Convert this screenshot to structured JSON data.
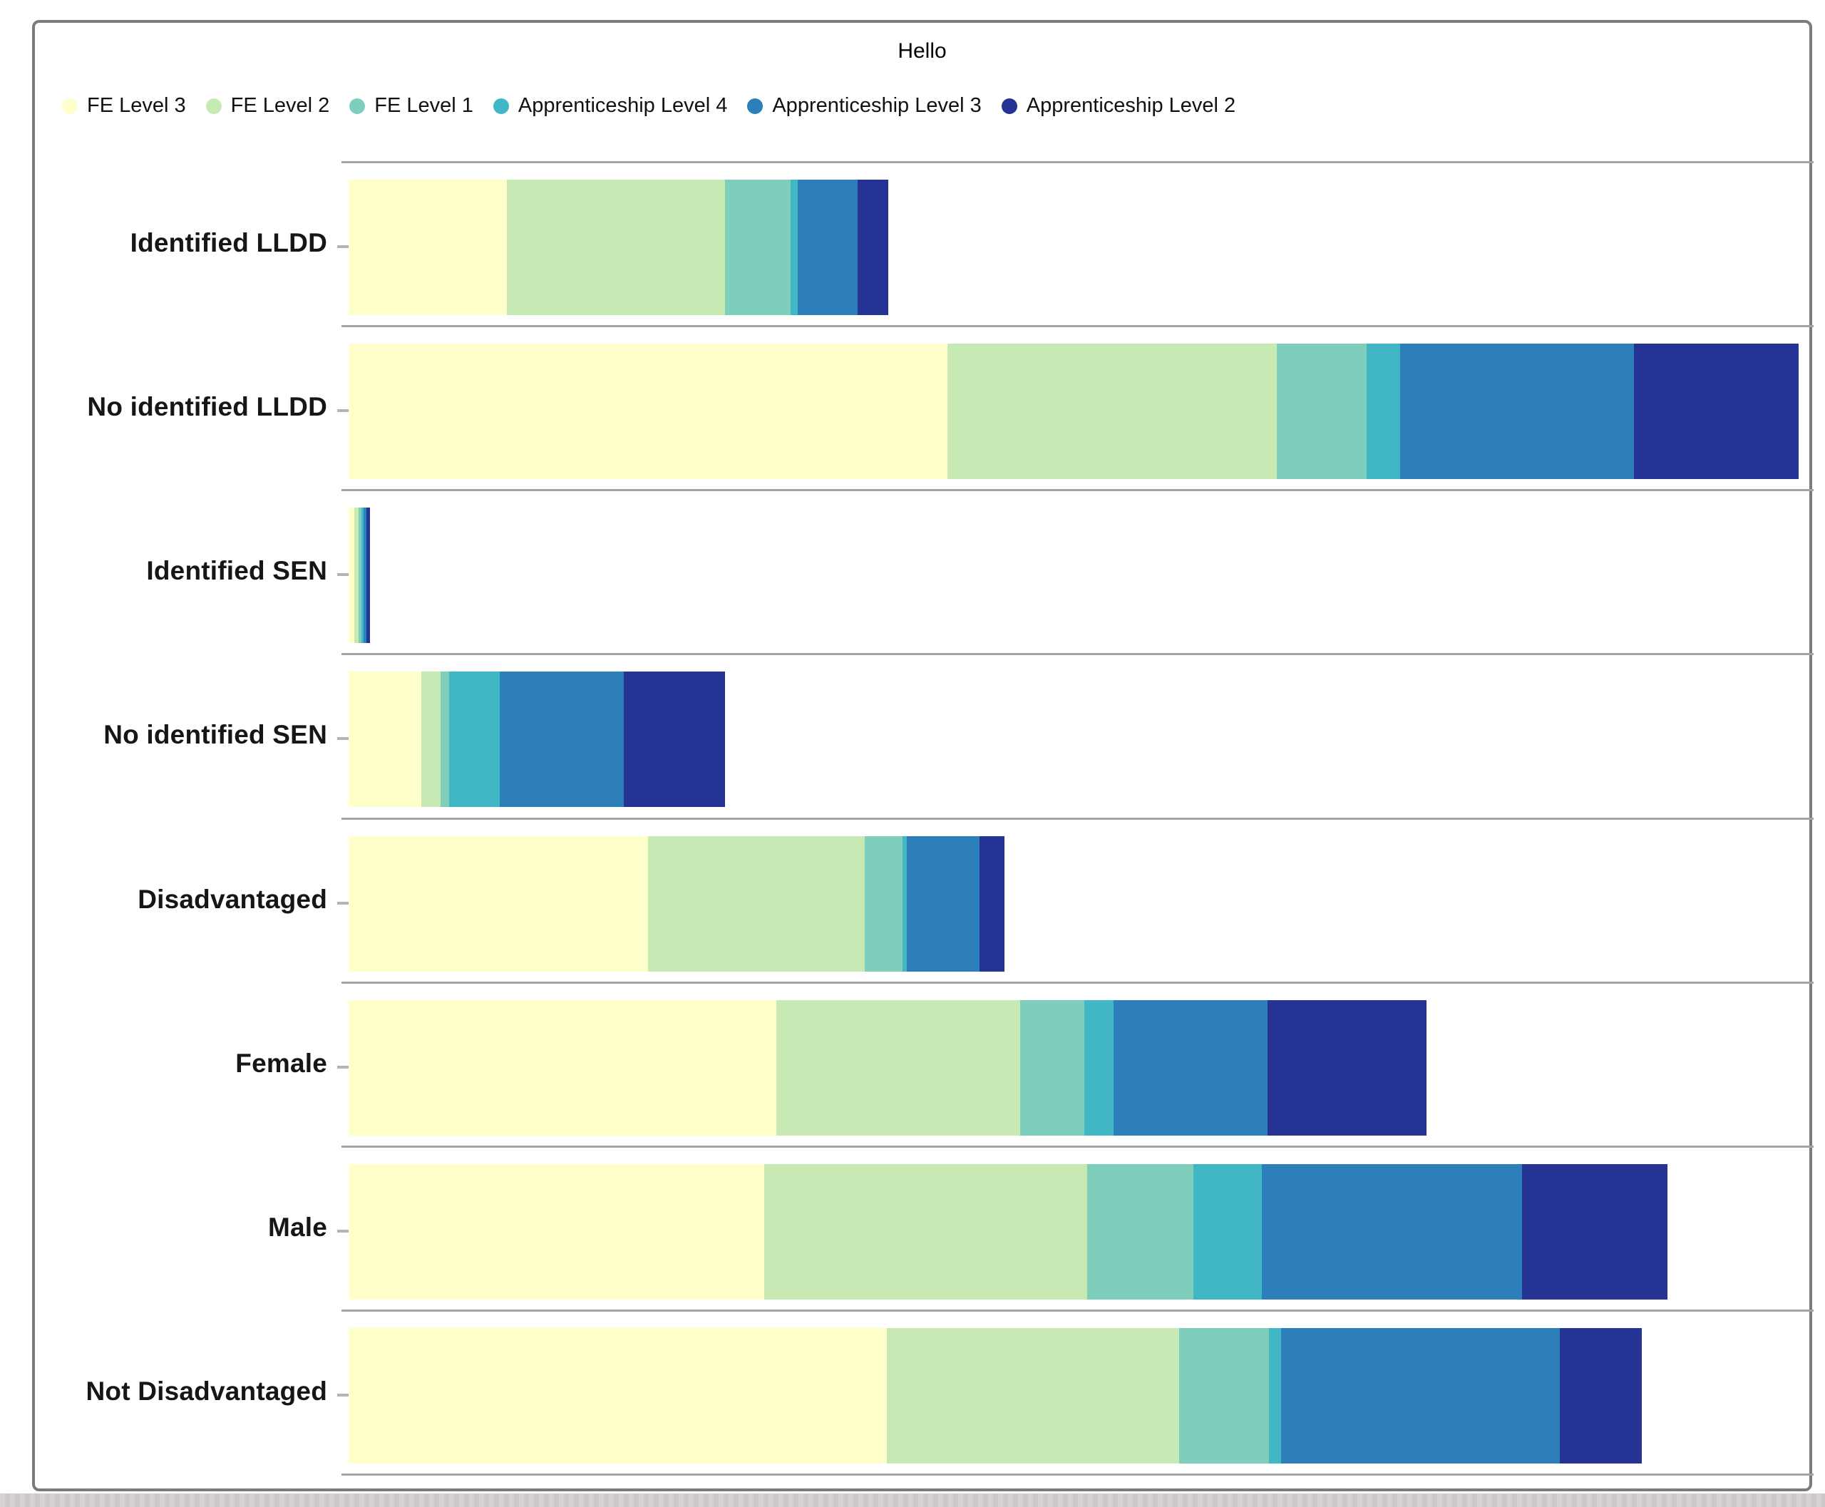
{
  "page": {
    "title": "Hello"
  },
  "style": {
    "card_border_color": "#7b7b7b",
    "row_divider_color": "#a3a3a3",
    "axis_tick_color": "#b4b4b4",
    "category_label_color": "#161616",
    "title_color": "#000000",
    "legend_text_color": "#111111",
    "page_bottom_strip_color": "#d3cccd"
  },
  "chart_data": {
    "type": "bar",
    "orientation": "horizontal",
    "stacked": true,
    "title": "Hello",
    "legend_position": "top-left",
    "gridlines": "horizontal row dividers only, no vertical gridlines",
    "x_axis": {
      "min": 0,
      "max": 100,
      "tick_labels_visible": false,
      "note": "no numeric axis labels shown; values estimated as percent of full axis span"
    },
    "categories": [
      "Identified LLDD",
      "No identified LLDD",
      "Identified SEN",
      "No identified SEN",
      "Disadvantaged",
      "Female",
      "Male",
      "Not Disadvantaged"
    ],
    "series": [
      {
        "name": "FE Level 3",
        "color": "#ffffcc",
        "values": [
          10.9,
          41.2,
          0.4,
          5.0,
          20.6,
          29.4,
          28.6,
          37.0
        ]
      },
      {
        "name": "FE Level 2",
        "color": "#c7e9b4",
        "values": [
          15.0,
          22.6,
          0.3,
          1.3,
          14.9,
          16.8,
          22.2,
          20.1
        ]
      },
      {
        "name": "FE Level 1",
        "color": "#7fcdbb",
        "values": [
          4.5,
          6.2,
          0.2,
          0.6,
          2.6,
          4.4,
          7.3,
          6.2
        ]
      },
      {
        "name": "Apprenticeship Level 4",
        "color": "#41b6c4",
        "values": [
          0.5,
          2.3,
          0.15,
          3.5,
          0.3,
          2.0,
          4.7,
          0.8
        ]
      },
      {
        "name": "Apprenticeship Level 3",
        "color": "#2c7fb8",
        "values": [
          4.1,
          16.1,
          0.2,
          8.5,
          5.0,
          10.6,
          17.9,
          19.2
        ]
      },
      {
        "name": "Apprenticeship Level 2",
        "color": "#253494",
        "values": [
          2.1,
          11.3,
          0.2,
          7.0,
          1.7,
          10.9,
          10.0,
          5.6
        ]
      }
    ],
    "row_totals_percent": [
      37.1,
      99.7,
      1.45,
      25.9,
      45.1,
      74.1,
      90.7,
      88.9
    ]
  }
}
